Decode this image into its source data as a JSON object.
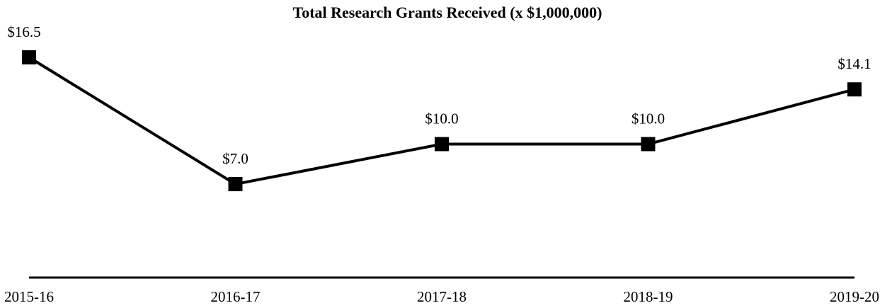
{
  "chart_data": {
    "type": "line",
    "title": "Total Research Grants Received (x $1,000,000)",
    "categories": [
      "2015-16",
      "2016-17",
      "2017-18",
      "2018-19",
      "2019-20"
    ],
    "series": [
      {
        "name": null,
        "color": "#000000",
        "values": [
          16.5,
          7.0,
          10.0,
          10.0,
          14.1
        ],
        "value_labels": [
          "$16.5",
          "$7.0",
          "$10.0",
          "$10.0",
          "$14.1"
        ]
      }
    ]
  }
}
